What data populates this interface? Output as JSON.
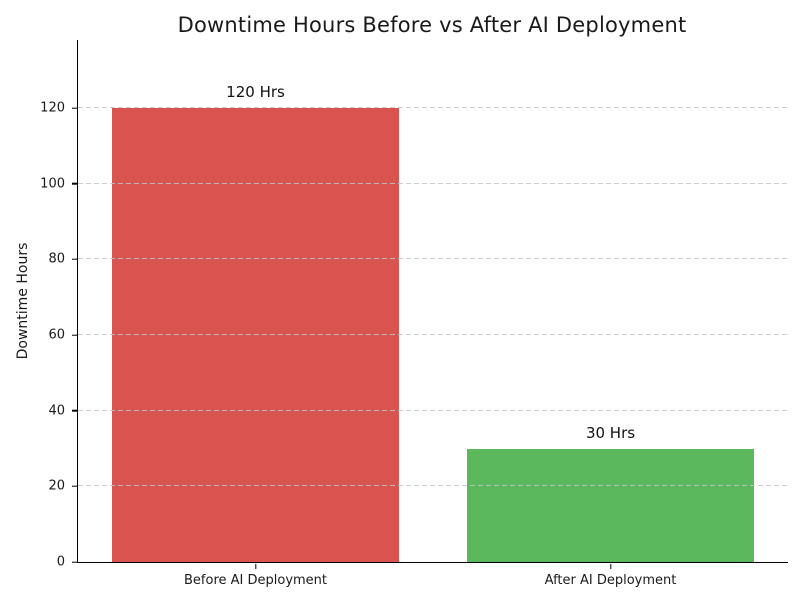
{
  "chart_data": {
    "type": "bar",
    "title": "Downtime Hours Before vs After AI Deployment",
    "xlabel": "",
    "ylabel": "Downtime Hours",
    "categories": [
      "Before AI Deployment",
      "After AI Deployment"
    ],
    "values": [
      120,
      30
    ],
    "value_labels": [
      "120 Hrs",
      "30 Hrs"
    ],
    "bar_colors": [
      "#d9534f",
      "#5cb85c"
    ],
    "ylim": [
      0,
      138
    ],
    "yticks": [
      0,
      20,
      40,
      60,
      80,
      100,
      120
    ],
    "grid": "horizontal-dashed",
    "grid_color": "#c4c4c4",
    "legend": "none",
    "background_color": "#ffffff",
    "title_color": "#1a1a1a"
  }
}
